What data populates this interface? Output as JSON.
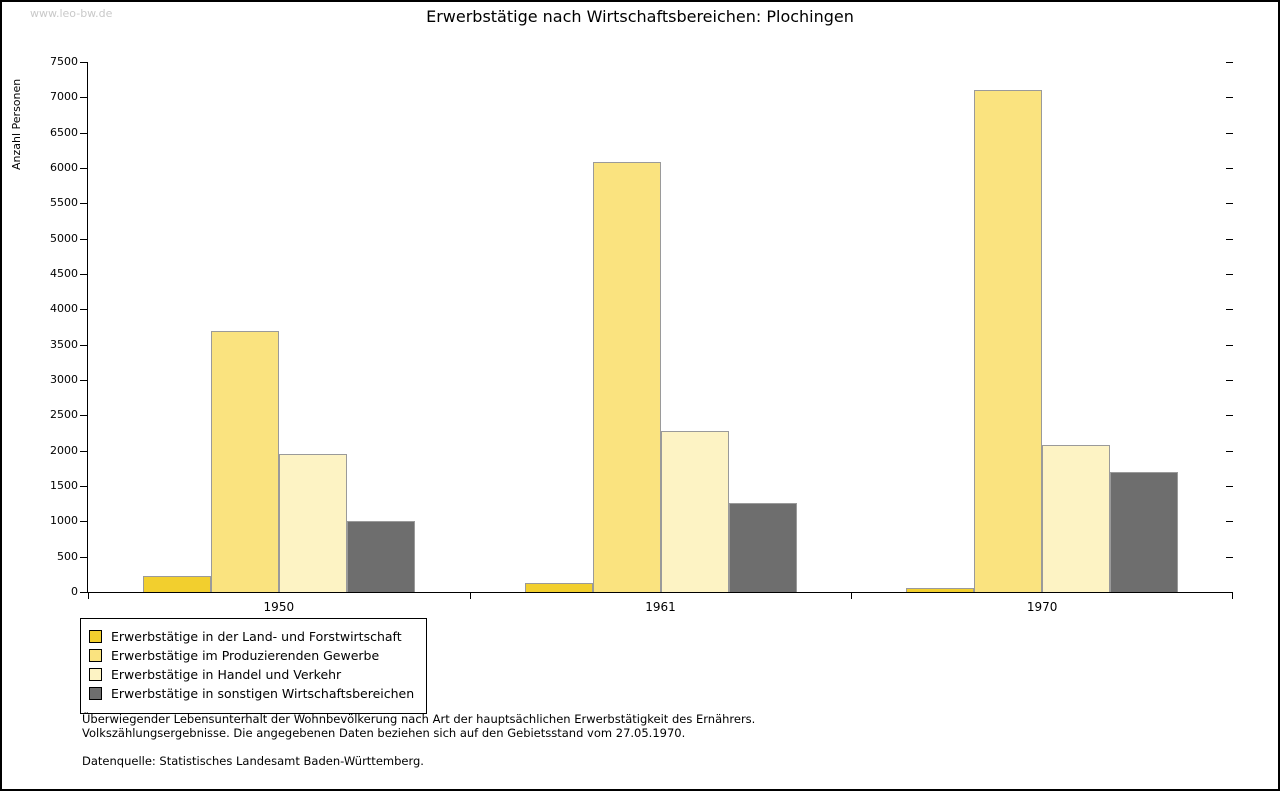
{
  "watermark": "www.leo-bw.de",
  "title": "Erwerbstätige nach Wirtschaftsbereichen: Plochingen",
  "chart_data": {
    "type": "bar",
    "title": "Erwerbstätige nach Wirtschaftsbereichen: Plochingen",
    "xlabel": "",
    "ylabel": "Anzahl Personen",
    "categories": [
      "1950",
      "1961",
      "1970"
    ],
    "series": [
      {
        "name": "Erwerbstätige in der Land- und Forstwirtschaft",
        "color": "#f2cf2e",
        "values": [
          230,
          130,
          60
        ]
      },
      {
        "name": "Erwerbstätige im Produzierenden Gewerbe",
        "color": "#fae37f",
        "values": [
          3690,
          6080,
          7100
        ]
      },
      {
        "name": "Erwerbstätige in Handel und Verkehr",
        "color": "#fdf3c4",
        "values": [
          1950,
          2280,
          2080
        ]
      },
      {
        "name": "Erwerbstätige in sonstigen Wirtschaftsbereichen",
        "color": "#6e6e6e",
        "values": [
          1000,
          1260,
          1700
        ]
      }
    ],
    "ylim": [
      0,
      7500
    ],
    "ytick_step": 500,
    "grid": false,
    "legend_position": "bottom-left"
  },
  "footnotes": {
    "line1": "Überwiegender Lebensunterhalt der Wohnbevölkerung nach Art der hauptsächlichen Erwerbstätigkeit des Ernährers.",
    "line2": "Volkszählungsergebnisse. Die angegebenen Daten beziehen sich auf den Gebietsstand vom 27.05.1970.",
    "source": "Datenquelle: Statistisches Landesamt Baden-Württemberg."
  }
}
